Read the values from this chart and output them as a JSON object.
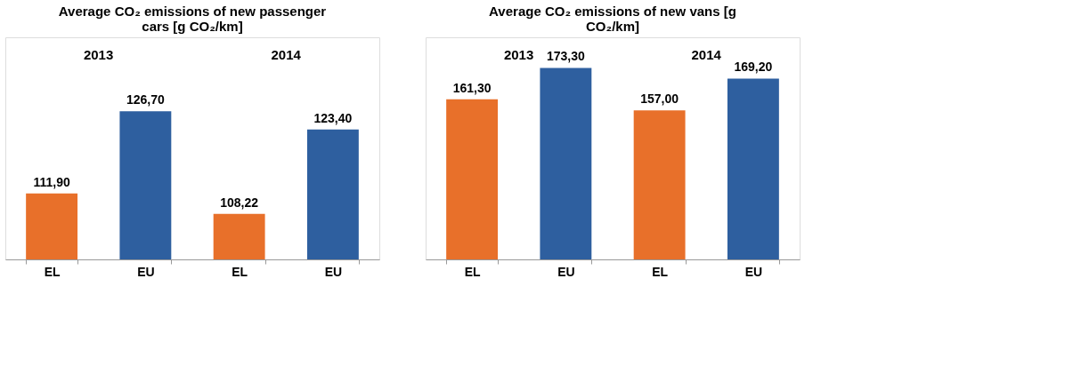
{
  "chart_data": [
    {
      "type": "bar",
      "title": "Average CO₂ emissions of new passenger cars [g CO₂/km]",
      "categories": [
        "EL",
        "EU",
        "EL",
        "EU"
      ],
      "values": [
        111.9,
        126.7,
        108.22,
        123.4
      ],
      "colors": [
        "#e8702a",
        "#2e5f9f",
        "#e8702a",
        "#2e5f9f"
      ],
      "value_labels": [
        "111,90",
        "126,70",
        "108,22",
        "123,40"
      ],
      "ylim": [
        100,
        140
      ],
      "tick_labels": "x",
      "annotations": [
        "2013",
        "2014"
      ]
    },
    {
      "type": "bar",
      "title": "Average CO₂ emissions of new vans [g CO₂/km]",
      "categories": [
        "EL",
        "EU",
        "EL",
        "EU"
      ],
      "values": [
        161.3,
        173.3,
        157.0,
        169.2
      ],
      "colors": [
        "#e8702a",
        "#2e5f9f",
        "#e8702a",
        "#2e5f9f"
      ],
      "value_labels": [
        "161,30",
        "173,30",
        "157,00",
        "169,20"
      ],
      "ylim": [
        100,
        185
      ],
      "tick_labels": "x",
      "annotations": [
        "2013",
        "2014"
      ]
    }
  ]
}
